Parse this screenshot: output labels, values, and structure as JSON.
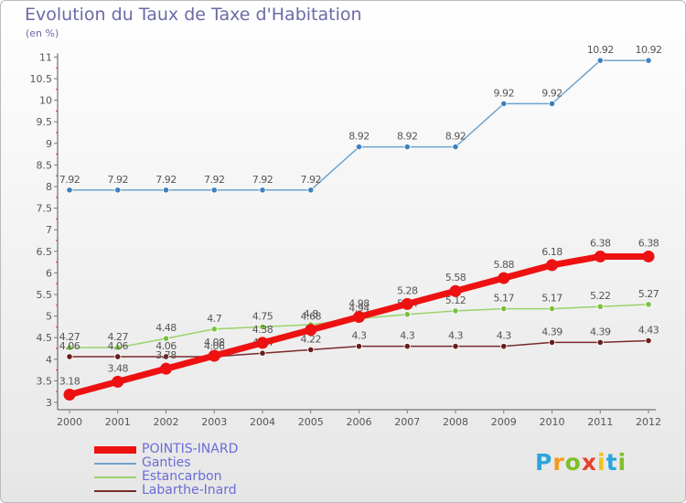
{
  "title": "Evolution du Taux de Taxe d'Habitation",
  "subtitle": "(en %)",
  "brand": {
    "letters": [
      "P",
      "r",
      "o",
      "x",
      "i",
      "t",
      "i"
    ],
    "colors": [
      "#2aa6dd",
      "#f29a1e",
      "#7fbf2a",
      "#e8412c",
      "#f2c318",
      "#2aa6dd",
      "#7fbf2a"
    ]
  },
  "chart_data": {
    "type": "line",
    "title": "Evolution du Taux de Taxe d'Habitation",
    "ylabel": "(en %)",
    "xlabel": "",
    "x": [
      "2000",
      "2001",
      "2002",
      "2003",
      "2004",
      "2005",
      "2006",
      "2007",
      "2008",
      "2009",
      "2010",
      "2011",
      "2012"
    ],
    "ylim": [
      3,
      11
    ],
    "yticks": [
      "3",
      "3.5",
      "4",
      "4.5",
      "5",
      "5.5",
      "6",
      "6.5",
      "7",
      "7.5",
      "8",
      "8.5",
      "9",
      "9.5",
      "10",
      "10.5",
      "11"
    ],
    "grid": false,
    "legend_position": "bottom-left",
    "series": [
      {
        "name": "Ganties",
        "color": "#6fa3cc",
        "marker": "#3d82bf",
        "values": [
          7.92,
          7.92,
          7.92,
          7.92,
          7.92,
          7.92,
          8.92,
          8.92,
          8.92,
          9.92,
          9.92,
          10.92,
          10.92
        ],
        "labels": [
          "7.92",
          "7.92",
          "7.92",
          "7.92",
          "7.92",
          "7.92",
          "8.92",
          "8.92",
          "8.92",
          "9.92",
          "9.92",
          "10.92",
          "10.92"
        ]
      },
      {
        "name": "Estancarbon",
        "color": "#9ad36a",
        "marker": "#78c040",
        "values": [
          4.27,
          4.27,
          4.48,
          4.7,
          4.75,
          4.8,
          4.94,
          5.04,
          5.12,
          5.17,
          5.17,
          5.22,
          5.27
        ],
        "labels": [
          "4.27",
          "4.27",
          "4.48",
          "4.7",
          "4.75",
          "4.8",
          "4.94",
          "5.04",
          "5.12",
          "5.17",
          "5.17",
          "5.22",
          "5.27"
        ]
      },
      {
        "name": "Labarthe-Inard",
        "color": "#7a2a2a",
        "marker": "#6a1c1c",
        "values": [
          4.06,
          4.06,
          4.06,
          4.06,
          4.14,
          4.22,
          4.3,
          4.3,
          4.3,
          4.3,
          4.39,
          4.39,
          4.43
        ],
        "labels": [
          "4.06",
          "4.06",
          "4.06",
          "4.06",
          "4.14",
          "4.22",
          "4.3",
          "4.3",
          "4.3",
          "4.3",
          "4.39",
          "4.39",
          "4.43"
        ]
      },
      {
        "name": "POINTIS-INARD",
        "color": "#ee1111",
        "marker": "#ee1111",
        "values": [
          3.18,
          3.48,
          3.78,
          4.08,
          4.38,
          4.68,
          4.98,
          5.28,
          5.58,
          5.88,
          6.18,
          6.38,
          6.38
        ],
        "labels": [
          "3.18",
          "3.48",
          "3.78",
          "4.08",
          "4.38",
          "4.68",
          "4.98",
          "5.28",
          "5.58",
          "5.88",
          "6.18",
          "6.38",
          "6.38"
        ]
      }
    ],
    "legend_order": [
      "POINTIS-INARD",
      "Ganties",
      "Estancarbon",
      "Labarthe-Inard"
    ]
  }
}
